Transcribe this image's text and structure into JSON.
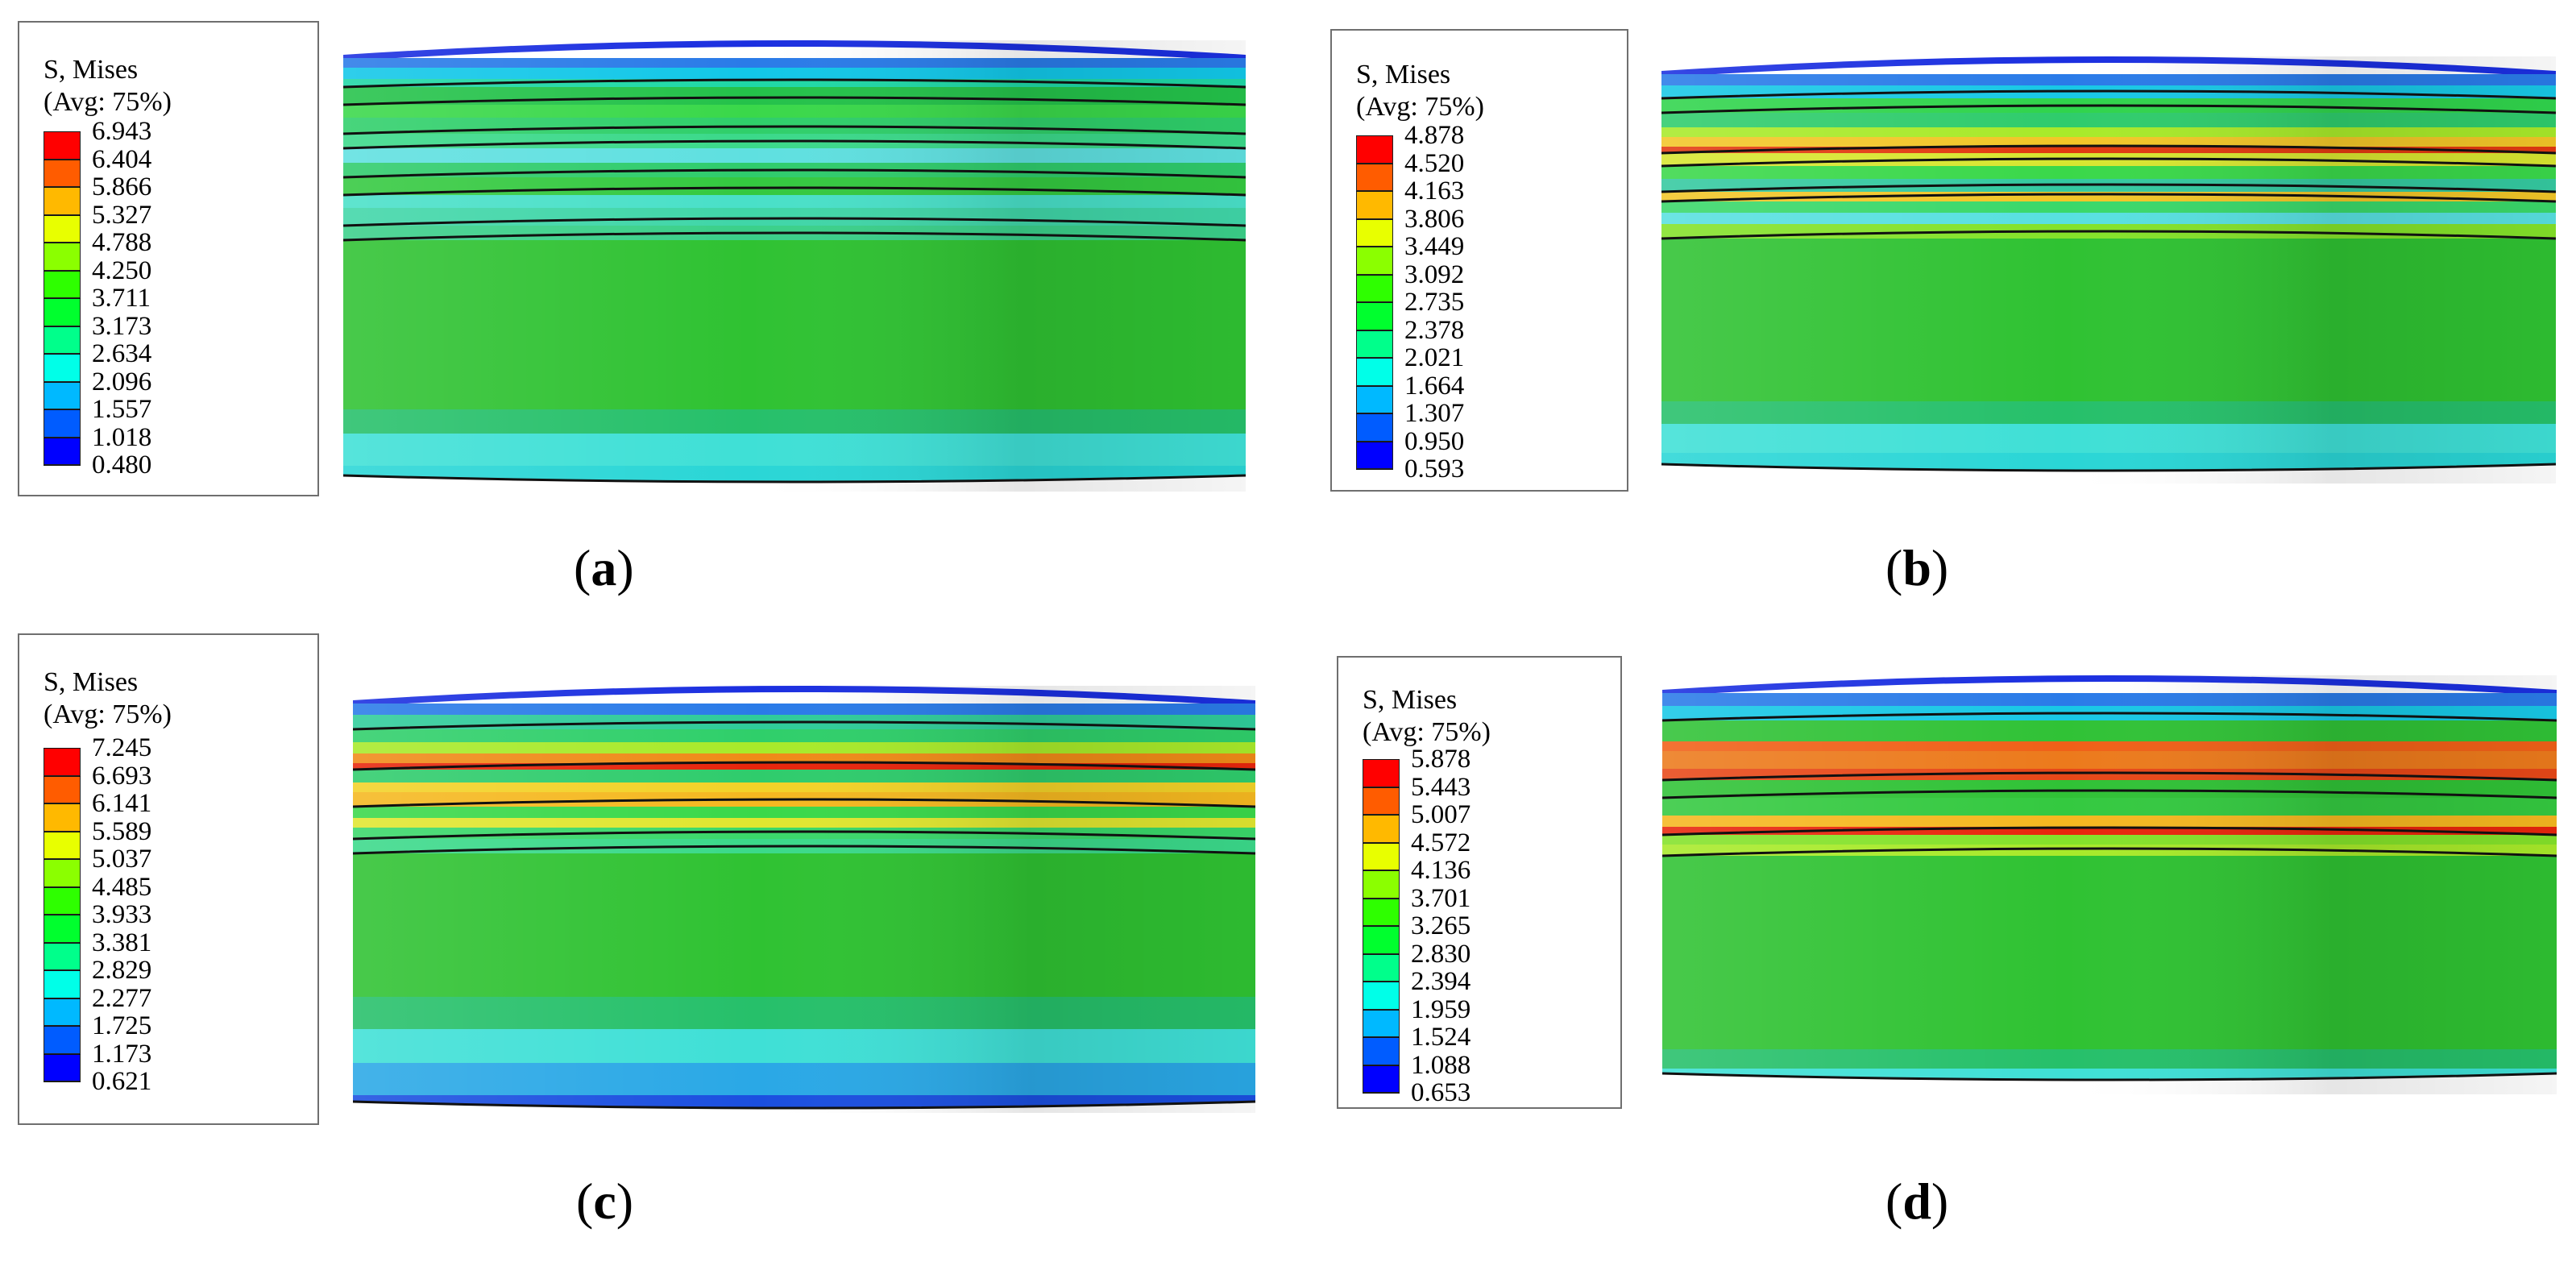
{
  "colors": {
    "contour": [
      "#0000ff",
      "#005cff",
      "#00b9ff",
      "#00ffe8",
      "#00ff8b",
      "#00ff2e",
      "#2eff00",
      "#8bff00",
      "#e8ff00",
      "#ffb900",
      "#ff5c00",
      "#ff0000"
    ],
    "outline": "#111111",
    "background": "#ffffff"
  },
  "panels": [
    {
      "id": "a",
      "caption": {
        "open": "(",
        "letter": "a",
        "close": ")"
      },
      "legend": {
        "title_line1": "S, Mises",
        "title_line2": "(Avg: 75%)",
        "values": [
          "6.943",
          "6.404",
          "5.866",
          "5.327",
          "4.788",
          "4.250",
          "3.711",
          "3.173",
          "2.634",
          "2.096",
          "1.557",
          "1.018",
          "0.480"
        ]
      }
    },
    {
      "id": "b",
      "caption": {
        "open": "(",
        "letter": "b",
        "close": ")"
      },
      "legend": {
        "title_line1": "S, Mises",
        "title_line2": "(Avg: 75%)",
        "values": [
          "4.878",
          "4.520",
          "4.163",
          "3.806",
          "3.449",
          "3.092",
          "2.735",
          "2.378",
          "2.021",
          "1.664",
          "1.307",
          "0.950",
          "0.593"
        ]
      }
    },
    {
      "id": "c",
      "caption": {
        "open": "(",
        "letter": "c",
        "close": ")"
      },
      "legend": {
        "title_line1": "S, Mises",
        "title_line2": "(Avg: 75%)",
        "values": [
          "7.245",
          "6.693",
          "6.141",
          "5.589",
          "5.037",
          "4.485",
          "3.933",
          "3.381",
          "2.829",
          "2.277",
          "1.725",
          "1.173",
          "0.621"
        ]
      }
    },
    {
      "id": "d",
      "caption": {
        "open": "(",
        "letter": "d",
        "close": ")"
      },
      "legend": {
        "title_line1": "S, Mises",
        "title_line2": "(Avg: 75%)",
        "values": [
          "5.878",
          "5.443",
          "5.007",
          "4.572",
          "4.136",
          "3.701",
          "3.265",
          "2.830",
          "2.394",
          "1.959",
          "1.524",
          "1.088",
          "0.653"
        ]
      }
    }
  ]
}
